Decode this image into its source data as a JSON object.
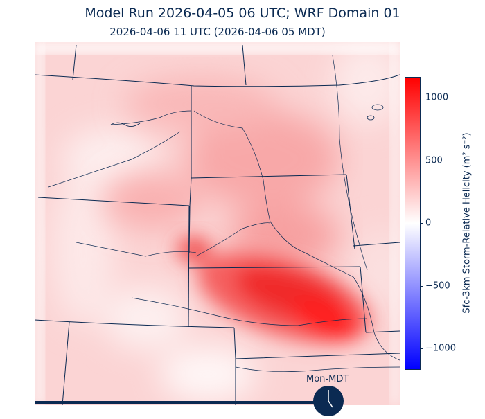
{
  "title": "Model Run 2026-04-05 06 UTC; WRF Domain 01",
  "subtitle": "2026-04-06 11 UTC  (2026-04-06 05 MDT)",
  "colorbar": {
    "label": "Sfc-3km Storm-Relative Helicity (m² s⁻²)",
    "ticks": [
      "1000",
      "500",
      "0",
      "−500",
      "−1000"
    ],
    "colors": {
      "max": "#ff0000",
      "mid": "#ffffff",
      "min": "#0000ff"
    }
  },
  "clock": {
    "label": "Mon-MDT"
  },
  "colors": {
    "ink": "#0b2a52"
  }
}
